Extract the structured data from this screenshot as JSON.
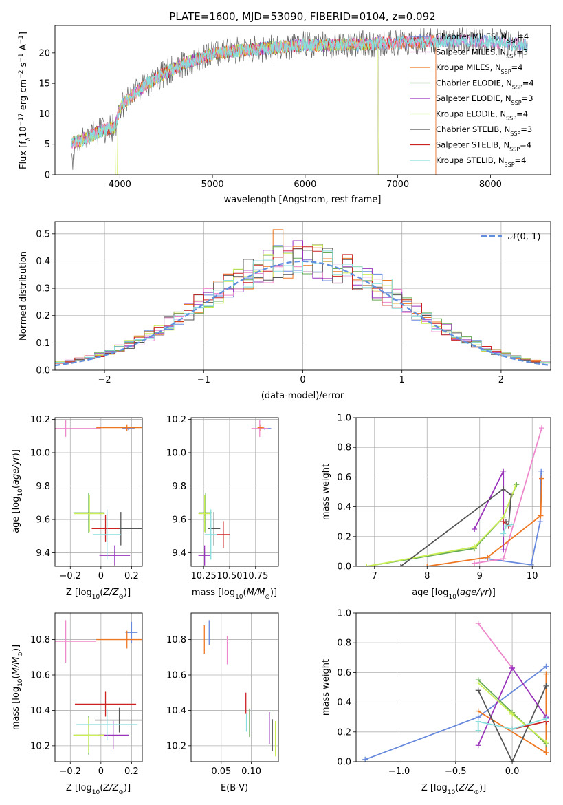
{
  "figure": {
    "title": "PLATE=1600, MJD=53090, FIBERID=0104, z=0.092"
  },
  "colors": {
    "chabrier_miles": "#6688dd",
    "salpeter_miles": "#ee88cc",
    "kroupa_miles": "#ee7722",
    "chabrier_elodie": "#66aa55",
    "salpeter_elodie": "#9933bb",
    "kroupa_elodie": "#ccee55",
    "chabrier_stelib": "#555555",
    "salpeter_stelib": "#cc2222",
    "kroupa_stelib": "#88dddd",
    "normal_curve": "#6090dd",
    "grid": "#b0b0b0"
  },
  "chart_data": [
    {
      "id": "spectrum",
      "type": "line",
      "xlabel": "wavelength [Angstrom, rest frame]",
      "ylabel": "Flux [f_λ 10^-17 erg cm^-2 s^-1 A^-1]",
      "xlim": [
        3300,
        8650
      ],
      "ylim": [
        0,
        24.5
      ],
      "xticks": [
        4000,
        5000,
        6000,
        7000,
        8000
      ],
      "yticks": [
        0,
        5,
        10,
        15,
        20
      ],
      "grid": false,
      "legend_position": "top-right",
      "continuum": {
        "x": [
          3480,
          3600,
          3800,
          3950,
          4000,
          4100,
          4300,
          4500,
          4700,
          5000,
          5300,
          5600,
          6000,
          6300,
          6600,
          7000,
          7400,
          7800,
          8200,
          8400
        ],
        "y": [
          5.2,
          5.8,
          7.2,
          7.8,
          11.0,
          12.5,
          15.0,
          16.8,
          18.3,
          19.8,
          20.4,
          20.8,
          21.3,
          21.3,
          21.4,
          21.7,
          21.9,
          22.0,
          21.6,
          21.2
        ]
      },
      "series": [
        {
          "name": "Chabrier MILES, N_SSP=4",
          "color_key": "chabrier_miles",
          "xmax": 8400
        },
        {
          "name": "Salpeter MILES, N_SSP=3",
          "color_key": "salpeter_miles",
          "xmax": 8400
        },
        {
          "name": "Kroupa MILES, N_SSP=4",
          "color_key": "kroupa_miles",
          "xmax": 7410
        },
        {
          "name": "Chabrier ELODIE, N_SSP=4",
          "color_key": "chabrier_elodie",
          "xmax": 6790
        },
        {
          "name": "Salpeter ELODIE, N_SSP=3",
          "color_key": "salpeter_elodie",
          "xmax": 6790
        },
        {
          "name": "Kroupa ELODIE, N_SSP=4",
          "color_key": "kroupa_elodie",
          "xmax": 6790
        },
        {
          "name": "Chabrier STELIB, N_SSP=3",
          "color_key": "chabrier_stelib",
          "xmax": 8400
        },
        {
          "name": "Salpeter STELIB, N_SSP=4",
          "color_key": "salpeter_stelib",
          "xmax": 7410
        },
        {
          "name": "Kroupa STELIB, N_SSP=4",
          "color_key": "kroupa_stelib",
          "xmax": 8400
        }
      ],
      "legend": [
        {
          "name": "Chabrier MILES, N",
          "sub": "SSP",
          "tail": "=4",
          "color_key": "chabrier_miles"
        },
        {
          "name": "Salpeter MILES, N",
          "sub": "SSP",
          "tail": "=3",
          "color_key": "salpeter_miles"
        },
        {
          "name": "Kroupa MILES, N",
          "sub": "SSP",
          "tail": "=4",
          "color_key": "kroupa_miles"
        },
        {
          "name": "Chabrier ELODIE, N",
          "sub": "SSP",
          "tail": "=4",
          "color_key": "chabrier_elodie"
        },
        {
          "name": "Salpeter ELODIE, N",
          "sub": "SSP",
          "tail": "=3",
          "color_key": "salpeter_elodie"
        },
        {
          "name": "Kroupa ELODIE, N",
          "sub": "SSP",
          "tail": "=4",
          "color_key": "kroupa_elodie"
        },
        {
          "name": "Chabrier STELIB, N",
          "sub": "SSP",
          "tail": "=3",
          "color_key": "chabrier_stelib"
        },
        {
          "name": "Salpeter STELIB, N",
          "sub": "SSP",
          "tail": "=4",
          "color_key": "salpeter_stelib"
        },
        {
          "name": "Kroupa STELIB, N",
          "sub": "SSP",
          "tail": "=4",
          "color_key": "kroupa_stelib"
        }
      ]
    },
    {
      "id": "residuals",
      "type": "histogram",
      "xlabel": "(data-model)/error",
      "ylabel": "Normed distribution",
      "xlim": [
        -2.5,
        2.5
      ],
      "ylim": [
        0,
        0.545
      ],
      "xticks": [
        -2,
        -1,
        0,
        1,
        2
      ],
      "yticks": [
        0.0,
        0.1,
        0.2,
        0.3,
        0.4,
        0.5
      ],
      "grid": true,
      "legend_position": "top-right",
      "curve_label": "𝒩(0, 1)",
      "bin_width": 0.1
    },
    {
      "id": "age_vs_Z",
      "type": "errorbar",
      "xlabel": "Z [log10(Z/Z⊙)]",
      "ylabel": "age [log10(age/yr)]",
      "xlim": [
        -0.3,
        0.27
      ],
      "ylim": [
        9.32,
        10.21
      ],
      "xticks": [
        -0.2,
        0.0,
        0.2
      ],
      "yticks": [
        9.4,
        9.6,
        9.8,
        10.0,
        10.2
      ],
      "grid": true,
      "points": [
        {
          "c": "chabrier_miles",
          "x": 0.18,
          "xe": 0.04,
          "y": 10.145,
          "ye": 0.01
        },
        {
          "c": "salpeter_miles",
          "x": -0.23,
          "xe": 0.23,
          "y": 10.145,
          "ye": 0.05
        },
        {
          "c": "kroupa_miles",
          "x": 0.17,
          "xe": 0.2,
          "y": 10.15,
          "ye": 0.02
        },
        {
          "c": "chabrier_elodie",
          "x": -0.08,
          "xe": 0.1,
          "y": 9.64,
          "ye": 0.12
        },
        {
          "c": "salpeter_elodie",
          "x": 0.09,
          "xe": 0.1,
          "y": 9.385,
          "ye": 0.06
        },
        {
          "c": "kroupa_elodie",
          "x": -0.075,
          "xe": 0.1,
          "y": 9.635,
          "ye": 0.11
        },
        {
          "c": "chabrier_stelib",
          "x": 0.13,
          "xe": 0.17,
          "y": 9.545,
          "ye": 0.1
        },
        {
          "c": "salpeter_stelib",
          "x": 0.03,
          "xe": 0.09,
          "y": 9.545,
          "ye": 0.08
        },
        {
          "c": "kroupa_stelib",
          "x": 0.04,
          "xe": 0.09,
          "y": 9.51,
          "ye": 0.15
        }
      ]
    },
    {
      "id": "age_vs_mass",
      "type": "errorbar",
      "xlabel": "mass [log10(M/M⊙)]",
      "ylabel": "",
      "xlim": [
        10.13,
        10.97
      ],
      "ylim": [
        9.32,
        10.21
      ],
      "xticks": [
        10.25,
        10.5,
        10.75
      ],
      "xticklabels": [
        "10.25",
        "10.50",
        "10.75"
      ],
      "yticks": [
        9.4,
        9.6,
        9.8,
        10.0,
        10.2
      ],
      "grid": true,
      "points": [
        {
          "c": "chabrier_miles",
          "x": 10.84,
          "xe": 0.06,
          "y": 10.145,
          "ye": 0.01
        },
        {
          "c": "salpeter_miles",
          "x": 10.79,
          "xe": 0.08,
          "y": 10.145,
          "ye": 0.05
        },
        {
          "c": "kroupa_miles",
          "x": 10.8,
          "xe": 0.03,
          "y": 10.15,
          "ye": 0.02
        },
        {
          "c": "chabrier_elodie",
          "x": 10.27,
          "xe": 0.06,
          "y": 9.64,
          "ye": 0.12
        },
        {
          "c": "salpeter_elodie",
          "x": 10.26,
          "xe": 0.06,
          "y": 9.385,
          "ye": 0.06
        },
        {
          "c": "kroupa_elodie",
          "x": 10.26,
          "xe": 0.06,
          "y": 9.635,
          "ye": 0.11
        },
        {
          "c": "chabrier_stelib",
          "x": 10.35,
          "xe": 0.06,
          "y": 9.545,
          "ye": 0.1
        },
        {
          "c": "salpeter_stelib",
          "x": 10.44,
          "xe": 0.06,
          "y": 9.51,
          "ye": 0.08
        },
        {
          "c": "kroupa_stelib",
          "x": 10.32,
          "xe": 0.06,
          "y": 9.51,
          "ye": 0.15
        }
      ]
    },
    {
      "id": "mass_weight_vs_age",
      "type": "line",
      "xlabel": "age [log10(age/yr)]",
      "ylabel": "mass weight",
      "xlim": [
        6.65,
        10.35
      ],
      "ylim": [
        0,
        1.0
      ],
      "xticks": [
        7,
        8,
        9,
        10
      ],
      "yticks": [
        0.0,
        0.2,
        0.4,
        0.6,
        0.8,
        1.0
      ],
      "grid": true,
      "series": [
        {
          "c": "chabrier_miles",
          "x": [
            9.15,
            9.98,
            10.15,
            10.17
          ],
          "y": [
            0.05,
            0.01,
            0.3,
            0.64
          ]
        },
        {
          "c": "salpeter_miles",
          "x": [
            8.9,
            9.45,
            10.18
          ],
          "y": [
            0.02,
            0.05,
            0.93
          ]
        },
        {
          "c": "kroupa_miles",
          "x": [
            8.0,
            9.15,
            10.16,
            10.18
          ],
          "y": [
            0.0,
            0.06,
            0.34,
            0.59
          ]
        },
        {
          "c": "chabrier_elodie",
          "x": [
            6.85,
            8.9,
            9.45,
            9.7
          ],
          "y": [
            0.0,
            0.12,
            0.33,
            0.55
          ]
        },
        {
          "c": "salpeter_elodie",
          "x": [
            8.9,
            9.45,
            9.45,
            9.45
          ],
          "y": [
            0.25,
            0.64,
            0.3,
            0.11
          ]
        },
        {
          "c": "kroupa_elodie",
          "x": [
            6.85,
            8.9,
            9.45,
            9.68
          ],
          "y": [
            0.0,
            0.13,
            0.33,
            0.54
          ]
        },
        {
          "c": "chabrier_stelib",
          "x": [
            7.5,
            9.45,
            9.6,
            9.55,
            9.5
          ],
          "y": [
            0.0,
            0.52,
            0.48,
            0.27,
            0.3
          ]
        },
        {
          "c": "salpeter_stelib",
          "x": [
            9.45,
            9.55
          ],
          "y": [
            0.3,
            0.27
          ]
        },
        {
          "c": "kroupa_stelib",
          "x": [
            9.45,
            9.5,
            9.6
          ],
          "y": [
            0.22,
            0.27,
            0.28
          ]
        }
      ]
    },
    {
      "id": "mass_vs_Z",
      "type": "errorbar",
      "xlabel": "Z [log10(Z/Z⊙)]",
      "ylabel": "mass [log10(M/M⊙)]",
      "xlim": [
        -0.3,
        0.27
      ],
      "ylim": [
        10.11,
        10.95
      ],
      "xticks": [
        -0.2,
        0.0,
        0.2
      ],
      "yticks": [
        10.2,
        10.4,
        10.6,
        10.8
      ],
      "grid": true,
      "points": [
        {
          "c": "chabrier_miles",
          "x": 0.2,
          "xe": 0.04,
          "y": 10.84,
          "ye": 0.06
        },
        {
          "c": "salpeter_miles",
          "x": -0.23,
          "xe": 0.2,
          "y": 10.79,
          "ye": 0.12
        },
        {
          "c": "kroupa_miles",
          "x": 0.17,
          "xe": 0.2,
          "y": 10.8,
          "ye": 0.05
        },
        {
          "c": "chabrier_elodie",
          "x": -0.08,
          "xe": 0.1,
          "y": 10.26,
          "ye": 0.11
        },
        {
          "c": "salpeter_elodie",
          "x": 0.08,
          "xe": 0.1,
          "y": 10.26,
          "ye": 0.08
        },
        {
          "c": "kroupa_elodie",
          "x": -0.08,
          "xe": 0.1,
          "y": 10.26,
          "ye": 0.1
        },
        {
          "c": "chabrier_stelib",
          "x": 0.12,
          "xe": 0.16,
          "y": 10.345,
          "ye": 0.07
        },
        {
          "c": "salpeter_stelib",
          "x": 0.03,
          "xe": 0.2,
          "y": 10.435,
          "ye": 0.07
        },
        {
          "c": "kroupa_stelib",
          "x": 0.04,
          "xe": 0.2,
          "y": 10.32,
          "ye": 0.09
        }
      ]
    },
    {
      "id": "mass_vs_ebv",
      "type": "errorbar",
      "xlabel": "E(B-V)",
      "ylabel": "",
      "xlim": [
        0.0,
        0.145
      ],
      "ylim": [
        10.11,
        10.95
      ],
      "xticks": [
        0.05,
        0.1
      ],
      "xticklabels": [
        "0.05",
        "0.10"
      ],
      "yticks": [
        10.2,
        10.4,
        10.6,
        10.8
      ],
      "grid": true,
      "points": [
        {
          "c": "chabrier_miles",
          "x": 0.03,
          "y": 10.84,
          "ye": 0.07
        },
        {
          "c": "salpeter_miles",
          "x": 0.06,
          "y": 10.74,
          "ye": 0.08
        },
        {
          "c": "kroupa_miles",
          "x": 0.022,
          "y": 10.8,
          "ye": 0.08
        },
        {
          "c": "chabrier_elodie",
          "x": 0.097,
          "y": 10.33,
          "ye": 0.08
        },
        {
          "c": "salpeter_elodie",
          "x": 0.13,
          "y": 10.3,
          "ye": 0.09
        },
        {
          "c": "kroupa_elodie",
          "x": 0.14,
          "y": 10.24,
          "ye": 0.1
        },
        {
          "c": "chabrier_stelib",
          "x": 0.135,
          "y": 10.26,
          "ye": 0.09
        },
        {
          "c": "salpeter_stelib",
          "x": 0.091,
          "y": 10.44,
          "ye": 0.06
        },
        {
          "c": "kroupa_stelib",
          "x": 0.092,
          "y": 10.33,
          "ye": 0.05
        }
      ]
    },
    {
      "id": "mass_weight_vs_Z",
      "type": "line",
      "xlabel": "Z [log10(Z/Z⊙)]",
      "ylabel": "mass weight",
      "xlim": [
        -1.38,
        0.34
      ],
      "ylim": [
        0,
        1.0
      ],
      "xticks": [
        -1.0,
        -0.5,
        0.0
      ],
      "xticklabels": [
        "−1.0",
        "−0.5",
        "0.0"
      ],
      "yticks": [
        0.0,
        0.2,
        0.4,
        0.6,
        0.8,
        1.0
      ],
      "grid": true,
      "series": [
        {
          "c": "chabrier_miles",
          "x": [
            -1.3,
            -0.3,
            0.3
          ],
          "y": [
            0.015,
            0.3,
            0.64
          ]
        },
        {
          "c": "salpeter_miles",
          "x": [
            -0.3,
            0.0
          ],
          "y": [
            0.93,
            0.63
          ]
        },
        {
          "c": "kroupa_miles",
          "x": [
            -0.3,
            0.3,
            0.3,
            0.3
          ],
          "y": [
            0.34,
            0.06,
            0.59,
            0.06
          ]
        },
        {
          "c": "chabrier_elodie",
          "x": [
            -0.3,
            0.0,
            0.3
          ],
          "y": [
            0.55,
            0.33,
            0.12
          ]
        },
        {
          "c": "salpeter_elodie",
          "x": [
            -0.3,
            0.0,
            0.3
          ],
          "y": [
            0.11,
            0.63,
            0.3
          ]
        },
        {
          "c": "kroupa_elodie",
          "x": [
            -0.3,
            0.0,
            0.3
          ],
          "y": [
            0.53,
            0.32,
            0.13
          ]
        },
        {
          "c": "chabrier_stelib",
          "x": [
            -0.3,
            0.0,
            0.3
          ],
          "y": [
            0.48,
            0.0,
            0.51
          ]
        },
        {
          "c": "salpeter_stelib",
          "x": [
            0.0,
            0.3
          ],
          "y": [
            0.22,
            0.27
          ]
        },
        {
          "c": "kroupa_stelib",
          "x": [
            -0.3,
            -0.3,
            0.0,
            0.3
          ],
          "y": [
            0.21,
            0.27,
            0.22,
            0.29
          ]
        }
      ]
    }
  ]
}
